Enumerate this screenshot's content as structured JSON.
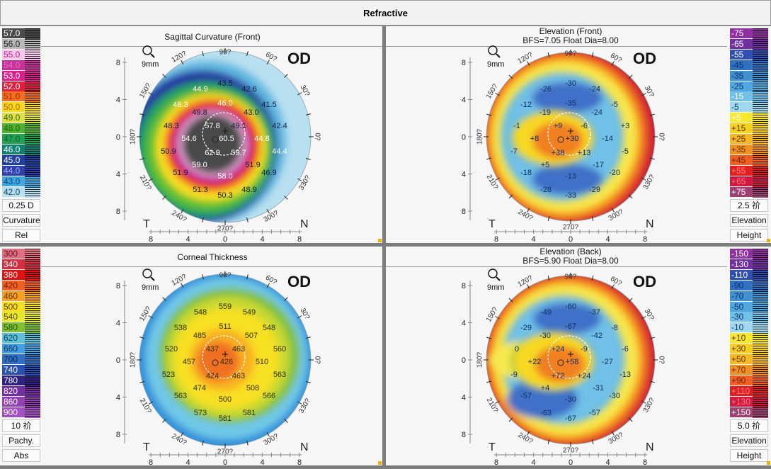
{
  "header": {
    "title": "Refractive"
  },
  "degree_labels": [
    "0?",
    "30?",
    "60?",
    "90?",
    "120?",
    "150?",
    "180?",
    "210?",
    "240?",
    "270?",
    "300?",
    "330?"
  ],
  "panels": [
    {
      "title": "Sagittal Curvature (Front)",
      "subtitle": "",
      "eye": "OD",
      "zoom": "9mm",
      "orientation": {
        "left": "T",
        "right": "N"
      },
      "axis_ticks": [
        "8",
        "4",
        "0",
        "4",
        "8"
      ],
      "legend": {
        "entries": [
          {
            "value": "57.0",
            "color": "#4a4a4a",
            "text_color": "#ffffff"
          },
          {
            "value": "56.0",
            "color": "#b8b8b8",
            "text_color": "#222222"
          },
          {
            "value": "55.0",
            "color": "#f4c8e8",
            "text_color": "#c0208c"
          },
          {
            "value": "54.0",
            "color": "#c8309c",
            "text_color": "#e070c0"
          },
          {
            "value": "53.0",
            "color": "#d8208c",
            "text_color": "#ffffff"
          },
          {
            "value": "52.0",
            "color": "#e0203c",
            "text_color": "#ffffff"
          },
          {
            "value": "51.0",
            "color": "#f07020",
            "text_color": "#b02000"
          },
          {
            "value": "50.0",
            "color": "#f8d820",
            "text_color": "#c06000"
          },
          {
            "value": "49.0",
            "color": "#e0e040",
            "text_color": "#306010"
          },
          {
            "value": "48.0",
            "color": "#50b030",
            "text_color": "#206010"
          },
          {
            "value": "47.0",
            "color": "#20a050",
            "text_color": "#106030"
          },
          {
            "value": "46.0",
            "color": "#108070",
            "text_color": "#ffffff"
          },
          {
            "value": "45.0",
            "color": "#2040a0",
            "text_color": "#ffffff"
          },
          {
            "value": "44.0",
            "color": "#3040a8",
            "text_color": "#a0b0ff"
          },
          {
            "value": "43.0",
            "color": "#40a8e0",
            "text_color": "#104080"
          },
          {
            "value": "42.0",
            "color": "#b8e0f0",
            "text_color": "#104060"
          }
        ],
        "step": "0.25 D",
        "type": "Curvature",
        "mode": "Rel"
      },
      "values": [
        "43.5",
        "44.9",
        "42.6",
        "46.3",
        "46.0",
        "41.5",
        "49.8",
        "43.0",
        "48.3",
        "57.8",
        "49.1",
        "42.4",
        "54.6",
        "60.5",
        "44.8",
        "50.9",
        "62.9",
        "59.7",
        "44.4",
        "59.0",
        "51.9",
        "51.9",
        "58.0",
        "46.9",
        "51.3",
        "50.3",
        "48.9"
      ]
    },
    {
      "title": "Elevation (Front)",
      "subtitle": "BFS=7.05 Float Dia=8.00",
      "eye": "OD",
      "zoom": "9mm",
      "orientation": {
        "left": "T",
        "right": "N"
      },
      "axis_ticks": [
        "8",
        "4",
        "0",
        "4",
        "8"
      ],
      "legend": {
        "entries": [
          {
            "value": "-75",
            "color": "#9030a0",
            "text_color": "#ffffff"
          },
          {
            "value": "-65",
            "color": "#7030a0",
            "text_color": "#ffffff"
          },
          {
            "value": "-55",
            "color": "#3050b0",
            "text_color": "#ffffff"
          },
          {
            "value": "-45",
            "color": "#3070c0",
            "text_color": "#103070"
          },
          {
            "value": "-35",
            "color": "#4090d0",
            "text_color": "#103070"
          },
          {
            "value": "-25",
            "color": "#50a8e0",
            "text_color": "#103070"
          },
          {
            "value": "-15",
            "color": "#70c0e8",
            "text_color": "#ffffff"
          },
          {
            "value": "-5",
            "color": "#a0d8f0",
            "text_color": "#104060"
          },
          {
            "value": "+5",
            "color": "#f8e830",
            "text_color": "#ffffff"
          },
          {
            "value": "+15",
            "color": "#f8d020",
            "text_color": "#603000"
          },
          {
            "value": "+25",
            "color": "#f8b820",
            "text_color": "#603000"
          },
          {
            "value": "+35",
            "color": "#f09020",
            "text_color": "#603000"
          },
          {
            "value": "+45",
            "color": "#f06020",
            "text_color": "#702000"
          },
          {
            "value": "+55",
            "color": "#e02020",
            "text_color": "#ff8080"
          },
          {
            "value": "+65",
            "color": "#d01840",
            "text_color": "#ff8080"
          },
          {
            "value": "+75",
            "color": "#a04070",
            "text_color": "#ffffff"
          }
        ],
        "step": "2.5 祄",
        "type": "Elevation",
        "mode": "Height"
      },
      "values": [
        "-30",
        "-26",
        "-24",
        "-12",
        "-35",
        "-5",
        "-19",
        "-24",
        "-1",
        "+9",
        "-6",
        "+3",
        "+8",
        "+30",
        "-14",
        "-7",
        "+38",
        "+13",
        "-5",
        "+5",
        "-17",
        "-18",
        "-13",
        "-20",
        "-28",
        "-33",
        "-29"
      ]
    },
    {
      "title": "Corneal Thickness",
      "subtitle": "",
      "eye": "OD",
      "zoom": "9mm",
      "orientation": {
        "left": "T",
        "right": "N"
      },
      "axis_ticks": [
        "8",
        "4",
        "0",
        "4",
        "8"
      ],
      "legend": {
        "entries": [
          {
            "value": "300",
            "color": "#e07080",
            "text_color": "#601020"
          },
          {
            "value": "340",
            "color": "#d03040",
            "text_color": "#ffffff"
          },
          {
            "value": "380",
            "color": "#e01010",
            "text_color": "#ffffff"
          },
          {
            "value": "420",
            "color": "#f06020",
            "text_color": "#702000"
          },
          {
            "value": "460",
            "color": "#f8a020",
            "text_color": "#603000"
          },
          {
            "value": "500",
            "color": "#f8e020",
            "text_color": "#604000"
          },
          {
            "value": "540",
            "color": "#e8e830",
            "text_color": "#604000"
          },
          {
            "value": "580",
            "color": "#80c030",
            "text_color": "#205010"
          },
          {
            "value": "620",
            "color": "#60c0d8",
            "text_color": "#104060"
          },
          {
            "value": "660",
            "color": "#40a0e0",
            "text_color": "#103060"
          },
          {
            "value": "700",
            "color": "#3070c0",
            "text_color": "#102050"
          },
          {
            "value": "740",
            "color": "#2850b0",
            "text_color": "#ffffff"
          },
          {
            "value": "780",
            "color": "#302080",
            "text_color": "#ffffff"
          },
          {
            "value": "820",
            "color": "#7030a0",
            "text_color": "#ffffff"
          },
          {
            "value": "860",
            "color": "#9040b0",
            "text_color": "#ffffff"
          },
          {
            "value": "900",
            "color": "#a050c0",
            "text_color": "#ffffff"
          }
        ],
        "step": "10 祄",
        "type": "Pachy.",
        "mode": "Abs"
      },
      "values": [
        "559",
        "548",
        "549",
        "538",
        "511",
        "548",
        "485",
        "507",
        "520",
        "437",
        "463",
        "560",
        "457",
        "426",
        "510",
        "523",
        "424",
        "463",
        "563",
        "474",
        "508",
        "563",
        "500",
        "566",
        "573",
        "581",
        "581"
      ]
    },
    {
      "title": "Elevation (Back)",
      "subtitle": "BFS=5.90 Float Dia=8.00",
      "eye": "OD",
      "zoom": "9mm",
      "orientation": {
        "left": "T",
        "right": "N"
      },
      "axis_ticks": [
        "8",
        "4",
        "0",
        "4",
        "8"
      ],
      "legend": {
        "entries": [
          {
            "value": "-150",
            "color": "#9030a0",
            "text_color": "#ffffff"
          },
          {
            "value": "-130",
            "color": "#7030a0",
            "text_color": "#ffffff"
          },
          {
            "value": "-110",
            "color": "#3050b0",
            "text_color": "#ffffff"
          },
          {
            "value": "-90",
            "color": "#3070c0",
            "text_color": "#103070"
          },
          {
            "value": "-70",
            "color": "#4090d0",
            "text_color": "#103070"
          },
          {
            "value": "-50",
            "color": "#50a8e0",
            "text_color": "#103070"
          },
          {
            "value": "-30",
            "color": "#70c0e8",
            "text_color": "#103070"
          },
          {
            "value": "-10",
            "color": "#a0d8f0",
            "text_color": "#104060"
          },
          {
            "value": "+10",
            "color": "#f8e830",
            "text_color": "#603000"
          },
          {
            "value": "+30",
            "color": "#f8d020",
            "text_color": "#603000"
          },
          {
            "value": "+50",
            "color": "#f8b820",
            "text_color": "#603000"
          },
          {
            "value": "+70",
            "color": "#f09020",
            "text_color": "#702000"
          },
          {
            "value": "+90",
            "color": "#f06020",
            "text_color": "#702000"
          },
          {
            "value": "+110",
            "color": "#e02020",
            "text_color": "#ff8080"
          },
          {
            "value": "+130",
            "color": "#d01840",
            "text_color": "#ff8080"
          },
          {
            "value": "+150",
            "color": "#a04070",
            "text_color": "#ffffff"
          }
        ],
        "step": "5.0 祄",
        "type": "Elevation",
        "mode": "Height"
      },
      "values": [
        "-60",
        "-49",
        "-37",
        "-29",
        "-67",
        "-8",
        "-30",
        "-42",
        "0",
        "+24",
        "-9",
        "-6",
        "+22",
        "+58",
        "-27",
        "-9",
        "+72",
        "+24",
        "-13",
        "+4",
        "-31",
        "-57",
        "-30",
        "-30",
        "-63",
        "-67",
        "-57"
      ]
    }
  ]
}
